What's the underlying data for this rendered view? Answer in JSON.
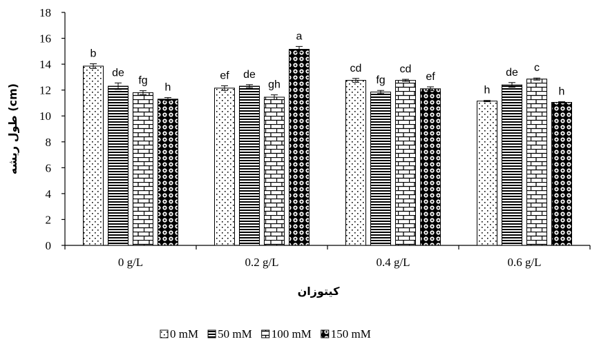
{
  "chart_data": {
    "type": "bar",
    "xlabel": "کیتوزان",
    "ylabel": "طول ریشه (cm)",
    "ylim": [
      0,
      18
    ],
    "yticks": [
      0,
      2,
      4,
      6,
      8,
      10,
      12,
      14,
      16,
      18
    ],
    "categories": [
      "0 g/L",
      "0.2 g/L",
      "0.4 g/L",
      "0.6 g/L"
    ],
    "grid": false,
    "legend_position": "bottom",
    "series": [
      {
        "name": "0 mM",
        "pattern": "dots",
        "values": [
          13.85,
          12.15,
          12.75,
          11.15
        ],
        "errors": [
          0.18,
          0.18,
          0.15,
          0.05
        ],
        "labels": [
          "b",
          "ef",
          "cd",
          "h"
        ]
      },
      {
        "name": "50 mM",
        "pattern": "horizontal-lines",
        "values": [
          12.3,
          12.3,
          11.85,
          12.4
        ],
        "errors": [
          0.25,
          0.12,
          0.12,
          0.18
        ],
        "labels": [
          "de",
          "de",
          "fg",
          "de"
        ]
      },
      {
        "name": "100 mM",
        "pattern": "bricks",
        "values": [
          11.8,
          11.45,
          12.75,
          12.85
        ],
        "errors": [
          0.15,
          0.18,
          0.08,
          0.08
        ],
        "labels": [
          "fg",
          "gh",
          "cd",
          "c"
        ]
      },
      {
        "name": "150 mM",
        "pattern": "circles",
        "values": [
          11.3,
          15.15,
          12.1,
          11.05
        ],
        "errors": [
          0.12,
          0.22,
          0.15,
          0.05
        ],
        "labels": [
          "h",
          "a",
          "ef",
          "h"
        ]
      }
    ]
  }
}
